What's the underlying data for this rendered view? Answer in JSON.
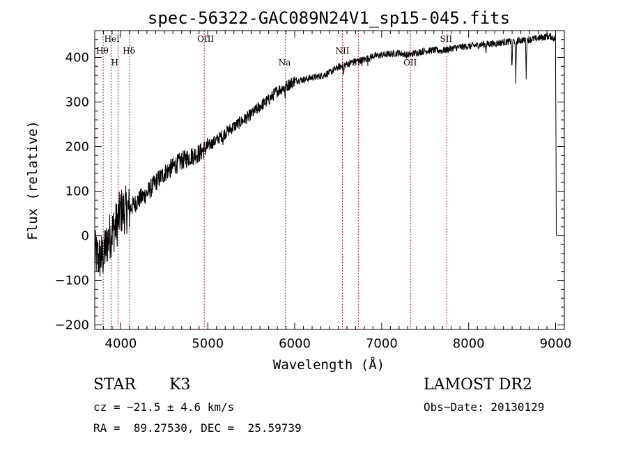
{
  "chart_data": {
    "type": "line",
    "title": "spec-56322-GAC089N24V1_sp15-045.fits",
    "xlabel": "Wavelength (Å)",
    "ylabel": "Flux (relative)",
    "xlim": [
      3700,
      9100
    ],
    "ylim": [
      -210,
      460
    ],
    "xticks": [
      4000,
      5000,
      6000,
      7000,
      8000,
      9000
    ],
    "yticks": [
      -200,
      -100,
      0,
      100,
      200,
      300,
      400
    ],
    "grid": false,
    "spectrum_anchors": [
      [
        3700,
        -40
      ],
      [
        3750,
        -50
      ],
      [
        3800,
        -45
      ],
      [
        3850,
        -10
      ],
      [
        3900,
        10
      ],
      [
        3950,
        25
      ],
      [
        4000,
        55
      ],
      [
        4100,
        60
      ],
      [
        4200,
        80
      ],
      [
        4300,
        95
      ],
      [
        4400,
        120
      ],
      [
        4500,
        140
      ],
      [
        4600,
        155
      ],
      [
        4700,
        168
      ],
      [
        4800,
        178
      ],
      [
        4900,
        185
      ],
      [
        5000,
        200
      ],
      [
        5100,
        215
      ],
      [
        5200,
        230
      ],
      [
        5300,
        245
      ],
      [
        5400,
        258
      ],
      [
        5500,
        272
      ],
      [
        5600,
        290
      ],
      [
        5700,
        305
      ],
      [
        5800,
        325
      ],
      [
        5900,
        335
      ],
      [
        6000,
        348
      ],
      [
        6100,
        350
      ],
      [
        6200,
        355
      ],
      [
        6300,
        358
      ],
      [
        6400,
        366
      ],
      [
        6500,
        378
      ],
      [
        6600,
        385
      ],
      [
        6700,
        392
      ],
      [
        6800,
        395
      ],
      [
        6900,
        403
      ],
      [
        7000,
        405
      ],
      [
        7100,
        408
      ],
      [
        7200,
        410
      ],
      [
        7300,
        405
      ],
      [
        7400,
        410
      ],
      [
        7500,
        415
      ],
      [
        7600,
        416
      ],
      [
        7700,
        415
      ],
      [
        7800,
        420
      ],
      [
        7900,
        423
      ],
      [
        8000,
        425
      ],
      [
        8100,
        427
      ],
      [
        8200,
        430
      ],
      [
        8300,
        431
      ],
      [
        8400,
        434
      ],
      [
        8500,
        436
      ],
      [
        8600,
        438
      ],
      [
        8700,
        440
      ],
      [
        8800,
        443
      ],
      [
        8900,
        447
      ],
      [
        8950,
        447
      ],
      [
        9000,
        440
      ]
    ],
    "absorption_features": [
      {
        "x": 8498,
        "depth": 70
      },
      {
        "x": 8542,
        "depth": 100
      },
      {
        "x": 8662,
        "depth": 85
      },
      {
        "x": 8200,
        "depth": 15
      },
      {
        "x": 6563,
        "depth": 25
      },
      {
        "x": 5890,
        "depth": 20
      },
      {
        "x": 5175,
        "depth": 15
      }
    ],
    "spectral_lines": [
      {
        "label": "Hθ",
        "x": 3797
      },
      {
        "label": "HeI",
        "x": 3889
      },
      {
        "label": "H",
        "x": 3968
      },
      {
        "label": "Hδ",
        "x": 4102
      },
      {
        "label": "OIII",
        "x": 4959
      },
      {
        "label": "Na",
        "x": 5893
      },
      {
        "label": "NII",
        "x": 6548
      },
      {
        "label": "SII r",
        "x": 6731
      },
      {
        "label": "OII",
        "x": 7330
      },
      {
        "label": "SII",
        "x": 7750
      }
    ],
    "line_color": "#000000",
    "marker_color": "#b22222"
  },
  "info": {
    "object_class": "STAR",
    "subclass": "K3",
    "survey": "LAMOST DR2",
    "redshift": "cz = −21.5 ± 4.6 km/s",
    "obs_date": "Obs−Date: 20130129",
    "coordinates": "RA =  89.27530, DEC =  25.59739"
  }
}
